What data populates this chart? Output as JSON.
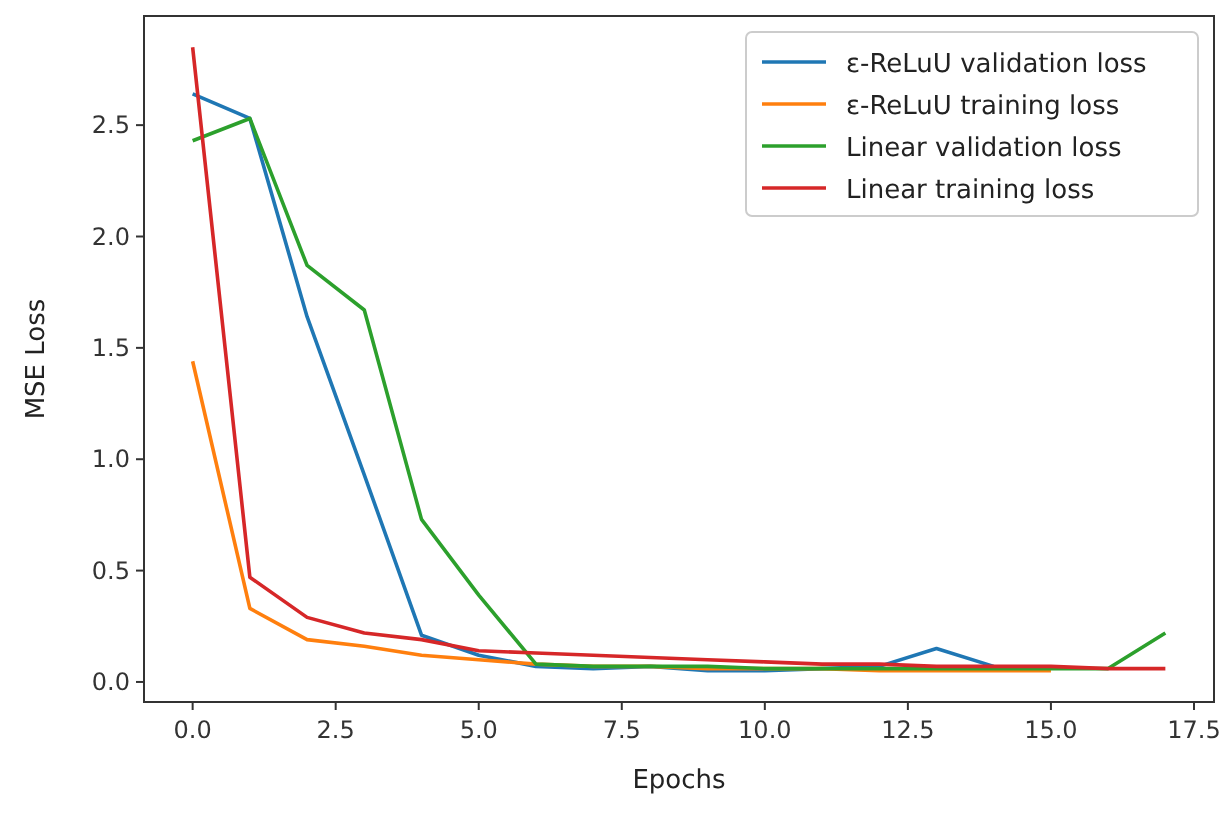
{
  "chart_data": {
    "type": "line",
    "xlabel": "Epochs",
    "ylabel": "MSE Loss",
    "x": [
      0,
      1,
      2,
      3,
      4,
      5,
      6,
      7,
      8,
      9,
      10,
      11,
      12,
      13,
      14,
      15,
      16,
      17
    ],
    "xlim": [
      -0.85,
      17.85
    ],
    "ylim": [
      -0.09,
      2.99
    ],
    "xticks": [
      {
        "value": 0,
        "label": "0.0"
      },
      {
        "value": 2.5,
        "label": "2.5"
      },
      {
        "value": 5,
        "label": "5.0"
      },
      {
        "value": 7.5,
        "label": "7.5"
      },
      {
        "value": 10,
        "label": "10.0"
      },
      {
        "value": 12.5,
        "label": "12.5"
      },
      {
        "value": 15,
        "label": "15.0"
      },
      {
        "value": 17.5,
        "label": "17.5"
      }
    ],
    "yticks": [
      {
        "value": 0,
        "label": "0.0"
      },
      {
        "value": 0.5,
        "label": "0.5"
      },
      {
        "value": 1,
        "label": "1.0"
      },
      {
        "value": 1.5,
        "label": "1.5"
      },
      {
        "value": 2,
        "label": "2.0"
      },
      {
        "value": 2.5,
        "label": "2.5"
      }
    ],
    "grid": false,
    "legend": "top right",
    "line_style": "solid",
    "marker": "none",
    "series": [
      {
        "name": "ε-ReLuU validation loss",
        "color": "#1f77b4",
        "values": [
          2.64,
          2.53,
          1.64,
          0.93,
          0.21,
          0.12,
          0.07,
          0.06,
          0.07,
          0.05,
          0.05,
          0.06,
          0.07,
          0.15,
          0.07,
          null,
          null,
          null
        ]
      },
      {
        "name": "ε-ReLuU training loss",
        "color": "#ff7f0e",
        "values": [
          1.44,
          0.33,
          0.19,
          0.16,
          0.12,
          0.1,
          0.08,
          0.07,
          0.07,
          0.06,
          0.06,
          0.06,
          0.05,
          0.05,
          0.05,
          0.05,
          null,
          null
        ]
      },
      {
        "name": "Linear validation loss",
        "color": "#2ca02c",
        "values": [
          2.43,
          2.53,
          1.87,
          1.67,
          0.73,
          0.39,
          0.08,
          0.07,
          0.07,
          0.07,
          0.06,
          0.06,
          0.06,
          0.06,
          0.06,
          0.06,
          0.06,
          0.22
        ]
      },
      {
        "name": "Linear training loss",
        "color": "#d62728",
        "values": [
          2.85,
          0.47,
          0.29,
          0.22,
          0.19,
          0.14,
          0.13,
          0.12,
          0.11,
          0.1,
          0.09,
          0.08,
          0.08,
          0.07,
          0.07,
          0.07,
          0.06,
          0.06
        ]
      }
    ]
  }
}
